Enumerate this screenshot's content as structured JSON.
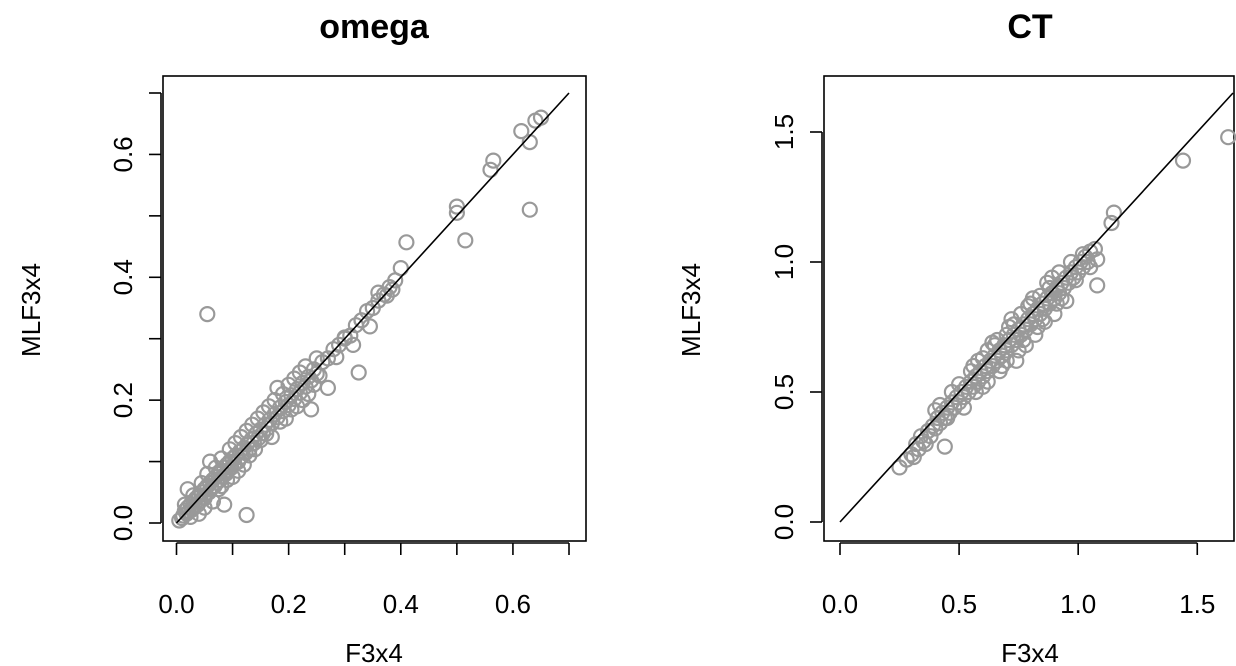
{
  "chart_data": [
    {
      "type": "scatter",
      "title": "omega",
      "xlabel": "F3x4",
      "ylabel": "MLF3x4",
      "xlim": [
        0.0,
        0.7
      ],
      "ylim": [
        0.0,
        0.7
      ],
      "xticks": [
        0.0,
        0.1,
        0.2,
        0.3,
        0.4,
        0.5,
        0.6,
        0.7
      ],
      "xtick_labels": [
        "0.0",
        "",
        "0.2",
        "",
        "0.4",
        "",
        "0.6",
        ""
      ],
      "yticks": [
        0.0,
        0.1,
        0.2,
        0.3,
        0.4,
        0.5,
        0.6,
        0.7
      ],
      "ytick_labels": [
        "0.0",
        "",
        "0.2",
        "",
        "0.4",
        "",
        "0.6",
        ""
      ],
      "reference_line": {
        "x": [
          0.0,
          0.7
        ],
        "y": [
          0.0,
          0.7
        ]
      },
      "marker_color": "#999999",
      "points": [
        [
          0.005,
          0.004
        ],
        [
          0.01,
          0.008
        ],
        [
          0.012,
          0.012
        ],
        [
          0.015,
          0.02
        ],
        [
          0.018,
          0.015
        ],
        [
          0.02,
          0.025
        ],
        [
          0.022,
          0.018
        ],
        [
          0.025,
          0.03
        ],
        [
          0.028,
          0.022
        ],
        [
          0.03,
          0.035
        ],
        [
          0.032,
          0.028
        ],
        [
          0.035,
          0.04
        ],
        [
          0.038,
          0.03
        ],
        [
          0.04,
          0.045
        ],
        [
          0.042,
          0.036
        ],
        [
          0.045,
          0.05
        ],
        [
          0.048,
          0.042
        ],
        [
          0.05,
          0.055
        ],
        [
          0.052,
          0.046
        ],
        [
          0.055,
          0.06
        ],
        [
          0.058,
          0.05
        ],
        [
          0.06,
          0.065
        ],
        [
          0.062,
          0.056
        ],
        [
          0.065,
          0.07
        ],
        [
          0.068,
          0.06
        ],
        [
          0.07,
          0.075
        ],
        [
          0.072,
          0.066
        ],
        [
          0.075,
          0.08
        ],
        [
          0.078,
          0.07
        ],
        [
          0.08,
          0.085
        ],
        [
          0.082,
          0.076
        ],
        [
          0.085,
          0.09
        ],
        [
          0.088,
          0.08
        ],
        [
          0.09,
          0.095
        ],
        [
          0.092,
          0.086
        ],
        [
          0.095,
          0.1
        ],
        [
          0.098,
          0.09
        ],
        [
          0.1,
          0.105
        ],
        [
          0.103,
          0.096
        ],
        [
          0.106,
          0.11
        ],
        [
          0.11,
          0.1
        ],
        [
          0.113,
          0.116
        ],
        [
          0.116,
          0.108
        ],
        [
          0.12,
          0.122
        ],
        [
          0.123,
          0.114
        ],
        [
          0.126,
          0.128
        ],
        [
          0.13,
          0.12
        ],
        [
          0.134,
          0.136
        ],
        [
          0.138,
          0.13
        ],
        [
          0.142,
          0.145
        ],
        [
          0.146,
          0.138
        ],
        [
          0.15,
          0.152
        ],
        [
          0.154,
          0.146
        ],
        [
          0.158,
          0.16
        ],
        [
          0.162,
          0.154
        ],
        [
          0.166,
          0.168
        ],
        [
          0.17,
          0.162
        ],
        [
          0.175,
          0.177
        ],
        [
          0.18,
          0.172
        ],
        [
          0.185,
          0.188
        ],
        [
          0.19,
          0.182
        ],
        [
          0.195,
          0.197
        ],
        [
          0.2,
          0.192
        ],
        [
          0.205,
          0.208
        ],
        [
          0.21,
          0.202
        ],
        [
          0.215,
          0.218
        ],
        [
          0.22,
          0.212
        ],
        [
          0.225,
          0.228
        ],
        [
          0.23,
          0.222
        ],
        [
          0.235,
          0.238
        ],
        [
          0.24,
          0.232
        ],
        [
          0.245,
          0.25
        ],
        [
          0.25,
          0.243
        ],
        [
          0.26,
          0.262
        ],
        [
          0.27,
          0.268
        ],
        [
          0.28,
          0.283
        ],
        [
          0.29,
          0.29
        ],
        [
          0.3,
          0.302
        ],
        [
          0.31,
          0.305
        ],
        [
          0.32,
          0.322
        ],
        [
          0.33,
          0.33
        ],
        [
          0.34,
          0.345
        ],
        [
          0.35,
          0.35
        ],
        [
          0.36,
          0.362
        ],
        [
          0.37,
          0.372
        ],
        [
          0.38,
          0.384
        ],
        [
          0.39,
          0.395
        ],
        [
          0.4,
          0.415
        ],
        [
          0.015,
          0.03
        ],
        [
          0.02,
          0.055
        ],
        [
          0.025,
          0.01
        ],
        [
          0.03,
          0.045
        ],
        [
          0.04,
          0.015
        ],
        [
          0.045,
          0.065
        ],
        [
          0.05,
          0.025
        ],
        [
          0.055,
          0.08
        ],
        [
          0.06,
          0.1
        ],
        [
          0.065,
          0.035
        ],
        [
          0.07,
          0.09
        ],
        [
          0.075,
          0.055
        ],
        [
          0.08,
          0.105
        ],
        [
          0.085,
          0.03
        ],
        [
          0.09,
          0.07
        ],
        [
          0.095,
          0.12
        ],
        [
          0.1,
          0.075
        ],
        [
          0.105,
          0.13
        ],
        [
          0.11,
          0.085
        ],
        [
          0.115,
          0.14
        ],
        [
          0.12,
          0.095
        ],
        [
          0.125,
          0.15
        ],
        [
          0.13,
          0.11
        ],
        [
          0.135,
          0.16
        ],
        [
          0.14,
          0.12
        ],
        [
          0.145,
          0.17
        ],
        [
          0.15,
          0.135
        ],
        [
          0.155,
          0.18
        ],
        [
          0.16,
          0.145
        ],
        [
          0.165,
          0.19
        ],
        [
          0.17,
          0.14
        ],
        [
          0.175,
          0.2
        ],
        [
          0.18,
          0.22
        ],
        [
          0.185,
          0.165
        ],
        [
          0.19,
          0.21
        ],
        [
          0.195,
          0.17
        ],
        [
          0.2,
          0.225
        ],
        [
          0.205,
          0.185
        ],
        [
          0.21,
          0.235
        ],
        [
          0.215,
          0.19
        ],
        [
          0.22,
          0.245
        ],
        [
          0.225,
          0.2
        ],
        [
          0.23,
          0.255
        ],
        [
          0.235,
          0.21
        ],
        [
          0.24,
          0.185
        ],
        [
          0.245,
          0.225
        ],
        [
          0.25,
          0.268
        ],
        [
          0.255,
          0.24
        ],
        [
          0.27,
          0.22
        ],
        [
          0.285,
          0.27
        ],
        [
          0.3,
          0.3
        ],
        [
          0.315,
          0.29
        ],
        [
          0.33,
          0.33
        ],
        [
          0.345,
          0.32
        ],
        [
          0.36,
          0.375
        ],
        [
          0.375,
          0.37
        ],
        [
          0.385,
          0.38
        ],
        [
          0.055,
          0.34
        ],
        [
          0.125,
          0.013
        ],
        [
          0.08,
          0.06
        ],
        [
          0.05,
          0.04
        ],
        [
          0.325,
          0.245
        ],
        [
          0.41,
          0.457
        ],
        [
          0.5,
          0.515
        ],
        [
          0.5,
          0.505
        ],
        [
          0.515,
          0.46
        ],
        [
          0.56,
          0.575
        ],
        [
          0.565,
          0.59
        ],
        [
          0.615,
          0.638
        ],
        [
          0.63,
          0.62
        ],
        [
          0.63,
          0.51
        ],
        [
          0.64,
          0.655
        ],
        [
          0.65,
          0.66
        ]
      ]
    },
    {
      "type": "scatter",
      "title": "CT",
      "xlabel": "F3x4",
      "ylabel": "MLF3x4",
      "xlim": [
        0.0,
        1.65
      ],
      "ylim": [
        0.0,
        1.65
      ],
      "xticks": [
        0.0,
        0.5,
        1.0,
        1.5
      ],
      "xtick_labels": [
        "0.0",
        "0.5",
        "1.0",
        "1.5"
      ],
      "yticks": [
        0.0,
        0.5,
        1.0,
        1.5
      ],
      "ytick_labels": [
        "0.0",
        "0.5",
        "1.0",
        "1.5"
      ],
      "reference_line": {
        "x": [
          0.0,
          1.65
        ],
        "y": [
          0.0,
          1.65
        ]
      },
      "marker_color": "#999999",
      "points": [
        [
          0.25,
          0.21
        ],
        [
          0.28,
          0.24
        ],
        [
          0.3,
          0.26
        ],
        [
          0.31,
          0.25
        ],
        [
          0.32,
          0.3
        ],
        [
          0.33,
          0.28
        ],
        [
          0.34,
          0.33
        ],
        [
          0.35,
          0.31
        ],
        [
          0.36,
          0.3
        ],
        [
          0.37,
          0.35
        ],
        [
          0.38,
          0.33
        ],
        [
          0.39,
          0.37
        ],
        [
          0.4,
          0.36
        ],
        [
          0.41,
          0.4
        ],
        [
          0.42,
          0.38
        ],
        [
          0.43,
          0.42
        ],
        [
          0.44,
          0.4
        ],
        [
          0.44,
          0.29
        ],
        [
          0.45,
          0.44
        ],
        [
          0.46,
          0.42
        ],
        [
          0.47,
          0.46
        ],
        [
          0.48,
          0.44
        ],
        [
          0.49,
          0.48
        ],
        [
          0.5,
          0.46
        ],
        [
          0.51,
          0.5
        ],
        [
          0.52,
          0.48
        ],
        [
          0.53,
          0.52
        ],
        [
          0.54,
          0.5
        ],
        [
          0.55,
          0.54
        ],
        [
          0.56,
          0.52
        ],
        [
          0.57,
          0.56
        ],
        [
          0.58,
          0.54
        ],
        [
          0.59,
          0.58
        ],
        [
          0.6,
          0.56
        ],
        [
          0.61,
          0.6
        ],
        [
          0.62,
          0.58
        ],
        [
          0.63,
          0.62
        ],
        [
          0.64,
          0.6
        ],
        [
          0.65,
          0.64
        ],
        [
          0.66,
          0.62
        ],
        [
          0.67,
          0.66
        ],
        [
          0.68,
          0.64
        ],
        [
          0.69,
          0.68
        ],
        [
          0.7,
          0.66
        ],
        [
          0.71,
          0.7
        ],
        [
          0.72,
          0.68
        ],
        [
          0.73,
          0.72
        ],
        [
          0.74,
          0.7
        ],
        [
          0.75,
          0.74
        ],
        [
          0.76,
          0.72
        ],
        [
          0.77,
          0.76
        ],
        [
          0.78,
          0.74
        ],
        [
          0.79,
          0.78
        ],
        [
          0.8,
          0.76
        ],
        [
          0.81,
          0.8
        ],
        [
          0.82,
          0.78
        ],
        [
          0.83,
          0.82
        ],
        [
          0.84,
          0.8
        ],
        [
          0.85,
          0.84
        ],
        [
          0.86,
          0.82
        ],
        [
          0.87,
          0.86
        ],
        [
          0.88,
          0.84
        ],
        [
          0.89,
          0.88
        ],
        [
          0.9,
          0.86
        ],
        [
          0.91,
          0.9
        ],
        [
          0.92,
          0.88
        ],
        [
          0.93,
          0.92
        ],
        [
          0.94,
          0.9
        ],
        [
          0.95,
          0.94
        ],
        [
          0.96,
          0.92
        ],
        [
          0.97,
          0.96
        ],
        [
          0.98,
          0.94
        ],
        [
          0.99,
          0.98
        ],
        [
          1.0,
          0.96
        ],
        [
          1.01,
          1.0
        ],
        [
          1.02,
          0.98
        ],
        [
          1.03,
          1.02
        ],
        [
          1.04,
          1.0
        ],
        [
          1.05,
          1.04
        ],
        [
          1.07,
          1.05
        ],
        [
          0.4,
          0.43
        ],
        [
          0.42,
          0.45
        ],
        [
          0.45,
          0.4
        ],
        [
          0.47,
          0.5
        ],
        [
          0.5,
          0.53
        ],
        [
          0.52,
          0.44
        ],
        [
          0.55,
          0.58
        ],
        [
          0.57,
          0.5
        ],
        [
          0.6,
          0.63
        ],
        [
          0.62,
          0.54
        ],
        [
          0.65,
          0.68
        ],
        [
          0.67,
          0.58
        ],
        [
          0.7,
          0.72
        ],
        [
          0.72,
          0.78
        ],
        [
          0.74,
          0.62
        ],
        [
          0.76,
          0.8
        ],
        [
          0.78,
          0.68
        ],
        [
          0.8,
          0.84
        ],
        [
          0.82,
          0.72
        ],
        [
          0.84,
          0.87
        ],
        [
          0.86,
          0.77
        ],
        [
          0.88,
          0.9
        ],
        [
          0.9,
          0.8
        ],
        [
          0.92,
          0.96
        ],
        [
          0.95,
          0.85
        ],
        [
          0.97,
          1.0
        ],
        [
          0.99,
          0.93
        ],
        [
          1.02,
          1.03
        ],
        [
          1.05,
          0.98
        ],
        [
          1.08,
          1.01
        ],
        [
          1.08,
          0.91
        ],
        [
          1.14,
          1.15
        ],
        [
          1.15,
          1.19
        ],
        [
          1.44,
          1.39
        ],
        [
          1.63,
          1.48
        ],
        [
          0.56,
          0.6
        ],
        [
          0.6,
          0.52
        ],
        [
          0.64,
          0.69
        ],
        [
          0.68,
          0.6
        ],
        [
          0.71,
          0.75
        ],
        [
          0.75,
          0.66
        ],
        [
          0.79,
          0.83
        ],
        [
          0.83,
          0.75
        ],
        [
          0.87,
          0.92
        ],
        [
          0.91,
          0.84
        ],
        [
          0.58,
          0.62
        ],
        [
          0.62,
          0.66
        ],
        [
          0.66,
          0.7
        ],
        [
          0.7,
          0.62
        ],
        [
          0.73,
          0.76
        ],
        [
          0.77,
          0.7
        ],
        [
          0.81,
          0.86
        ],
        [
          0.85,
          0.78
        ],
        [
          0.89,
          0.94
        ],
        [
          0.93,
          0.86
        ]
      ]
    }
  ]
}
